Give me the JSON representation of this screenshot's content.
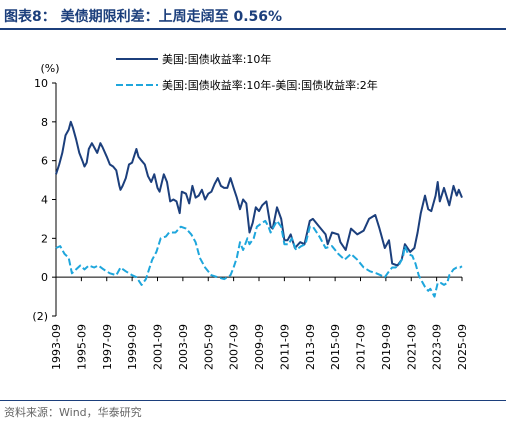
{
  "title": "图表8： 美债期限利差：上周走阔至 0.56%",
  "source": "资料来源：Wind，华泰研究",
  "chart_data": {
    "type": "line",
    "y_unit": "(%)",
    "ylim": [
      -2,
      10
    ],
    "y_ticks": [
      -2,
      0,
      2,
      4,
      6,
      8,
      10
    ],
    "y_tick_labels": [
      "(2)",
      "0",
      "2",
      "4",
      "6",
      "8",
      "10"
    ],
    "xlim": [
      "1993-09",
      "2025-09"
    ],
    "x_tick_labels": [
      "1993-09",
      "1995-09",
      "1997-09",
      "1999-09",
      "2001-09",
      "2003-09",
      "2005-09",
      "2007-09",
      "2009-09",
      "2011-09",
      "2013-09",
      "2015-09",
      "2017-09",
      "2019-09",
      "2021-09",
      "2023-09",
      "2025-09"
    ],
    "legend_position": "top",
    "series": [
      {
        "name": "美国:国债收益率:10年",
        "style": "solid",
        "color": "#1c3f7c",
        "points": [
          [
            "1993-09",
            5.3
          ],
          [
            "1993-12",
            5.8
          ],
          [
            "1994-03",
            6.4
          ],
          [
            "1994-06",
            7.3
          ],
          [
            "1994-09",
            7.6
          ],
          [
            "1994-11",
            8.0
          ],
          [
            "1995-01",
            7.7
          ],
          [
            "1995-04",
            7.1
          ],
          [
            "1995-07",
            6.4
          ],
          [
            "1995-10",
            6.0
          ],
          [
            "1995-12",
            5.7
          ],
          [
            "1996-02",
            5.9
          ],
          [
            "1996-04",
            6.6
          ],
          [
            "1996-07",
            6.9
          ],
          [
            "1996-10",
            6.6
          ],
          [
            "1996-12",
            6.4
          ],
          [
            "1997-03",
            6.9
          ],
          [
            "1997-05",
            6.7
          ],
          [
            "1997-09",
            6.2
          ],
          [
            "1997-12",
            5.8
          ],
          [
            "1998-03",
            5.7
          ],
          [
            "1998-06",
            5.5
          ],
          [
            "1998-09",
            4.7
          ],
          [
            "1998-10",
            4.5
          ],
          [
            "1998-12",
            4.7
          ],
          [
            "1999-03",
            5.1
          ],
          [
            "1999-06",
            5.8
          ],
          [
            "1999-09",
            5.9
          ],
          [
            "2000-01",
            6.6
          ],
          [
            "2000-03",
            6.2
          ],
          [
            "2000-06",
            6.0
          ],
          [
            "2000-09",
            5.8
          ],
          [
            "2000-12",
            5.2
          ],
          [
            "2001-03",
            4.9
          ],
          [
            "2001-06",
            5.3
          ],
          [
            "2001-09",
            4.6
          ],
          [
            "2001-11",
            4.4
          ],
          [
            "2002-03",
            5.3
          ],
          [
            "2002-06",
            4.9
          ],
          [
            "2002-09",
            3.9
          ],
          [
            "2002-12",
            4.0
          ],
          [
            "2003-03",
            3.9
          ],
          [
            "2003-06",
            3.3
          ],
          [
            "2003-08",
            4.4
          ],
          [
            "2003-12",
            4.3
          ],
          [
            "2004-03",
            3.8
          ],
          [
            "2004-06",
            4.7
          ],
          [
            "2004-09",
            4.1
          ],
          [
            "2004-12",
            4.2
          ],
          [
            "2005-03",
            4.5
          ],
          [
            "2005-06",
            4.0
          ],
          [
            "2005-09",
            4.3
          ],
          [
            "2005-12",
            4.4
          ],
          [
            "2006-03",
            4.8
          ],
          [
            "2006-06",
            5.1
          ],
          [
            "2006-09",
            4.7
          ],
          [
            "2006-12",
            4.6
          ],
          [
            "2007-03",
            4.6
          ],
          [
            "2007-06",
            5.1
          ],
          [
            "2007-09",
            4.6
          ],
          [
            "2007-12",
            4.1
          ],
          [
            "2008-03",
            3.5
          ],
          [
            "2008-06",
            4.0
          ],
          [
            "2008-09",
            3.8
          ],
          [
            "2008-12",
            2.3
          ],
          [
            "2009-03",
            2.8
          ],
          [
            "2009-06",
            3.6
          ],
          [
            "2009-09",
            3.4
          ],
          [
            "2009-12",
            3.7
          ],
          [
            "2010-04",
            3.9
          ],
          [
            "2010-08",
            2.6
          ],
          [
            "2010-10",
            2.5
          ],
          [
            "2011-02",
            3.6
          ],
          [
            "2011-06",
            3.0
          ],
          [
            "2011-09",
            1.9
          ],
          [
            "2011-12",
            1.9
          ],
          [
            "2012-03",
            2.2
          ],
          [
            "2012-07",
            1.5
          ],
          [
            "2012-12",
            1.8
          ],
          [
            "2013-04",
            1.7
          ],
          [
            "2013-09",
            2.9
          ],
          [
            "2013-12",
            3.0
          ],
          [
            "2014-06",
            2.6
          ],
          [
            "2014-12",
            2.2
          ],
          [
            "2015-02",
            1.7
          ],
          [
            "2015-06",
            2.3
          ],
          [
            "2015-12",
            2.2
          ],
          [
            "2016-02",
            1.8
          ],
          [
            "2016-07",
            1.4
          ],
          [
            "2016-12",
            2.5
          ],
          [
            "2017-06",
            2.2
          ],
          [
            "2017-12",
            2.4
          ],
          [
            "2018-05",
            3.0
          ],
          [
            "2018-11",
            3.2
          ],
          [
            "2019-03",
            2.5
          ],
          [
            "2019-08",
            1.5
          ],
          [
            "2019-12",
            1.9
          ],
          [
            "2020-03",
            0.7
          ],
          [
            "2020-08",
            0.6
          ],
          [
            "2020-12",
            0.9
          ],
          [
            "2021-03",
            1.7
          ],
          [
            "2021-08",
            1.3
          ],
          [
            "2021-12",
            1.5
          ],
          [
            "2022-03",
            2.3
          ],
          [
            "2022-06",
            3.3
          ],
          [
            "2022-10",
            4.2
          ],
          [
            "2023-01",
            3.5
          ],
          [
            "2023-04",
            3.4
          ],
          [
            "2023-08",
            4.2
          ],
          [
            "2023-10",
            4.9
          ],
          [
            "2023-12",
            3.9
          ],
          [
            "2024-04",
            4.6
          ],
          [
            "2024-09",
            3.7
          ],
          [
            "2025-01",
            4.7
          ],
          [
            "2025-04",
            4.2
          ],
          [
            "2025-06",
            4.5
          ],
          [
            "2025-09",
            4.1
          ]
        ]
      },
      {
        "name": "美国:国债收益率:10年-美国:国债收益率:2年",
        "style": "dashed",
        "color": "#1ea6dc",
        "points": [
          [
            "1993-09",
            1.5
          ],
          [
            "1994-01",
            1.6
          ],
          [
            "1994-05",
            1.2
          ],
          [
            "1994-09",
            1.0
          ],
          [
            "1994-12",
            0.2
          ],
          [
            "1995-04",
            0.4
          ],
          [
            "1995-08",
            0.6
          ],
          [
            "1995-12",
            0.4
          ],
          [
            "1996-04",
            0.6
          ],
          [
            "1996-09",
            0.5
          ],
          [
            "1997-01",
            0.6
          ],
          [
            "1997-06",
            0.4
          ],
          [
            "1997-12",
            0.2
          ],
          [
            "1998-06",
            0.1
          ],
          [
            "1998-10",
            0.5
          ],
          [
            "1999-03",
            0.3
          ],
          [
            "1999-09",
            0.1
          ],
          [
            "2000-01",
            0.0
          ],
          [
            "2000-06",
            -0.4
          ],
          [
            "2000-10",
            -0.1
          ],
          [
            "2001-01",
            0.4
          ],
          [
            "2001-04",
            0.9
          ],
          [
            "2001-08",
            1.3
          ],
          [
            "2001-12",
            2.0
          ],
          [
            "2002-05",
            2.1
          ],
          [
            "2002-08",
            2.3
          ],
          [
            "2003-02",
            2.3
          ],
          [
            "2003-07",
            2.6
          ],
          [
            "2003-12",
            2.5
          ],
          [
            "2004-05",
            2.2
          ],
          [
            "2004-09",
            1.8
          ],
          [
            "2005-01",
            1.0
          ],
          [
            "2005-06",
            0.5
          ],
          [
            "2005-12",
            0.1
          ],
          [
            "2006-06",
            0.0
          ],
          [
            "2006-12",
            -0.1
          ],
          [
            "2007-06",
            0.1
          ],
          [
            "2007-09",
            0.5
          ],
          [
            "2007-12",
            1.0
          ],
          [
            "2008-03",
            1.8
          ],
          [
            "2008-06",
            1.4
          ],
          [
            "2008-10",
            2.0
          ],
          [
            "2008-12",
            1.7
          ],
          [
            "2009-04",
            2.0
          ],
          [
            "2009-07",
            2.6
          ],
          [
            "2009-12",
            2.8
          ],
          [
            "2010-03",
            2.9
          ],
          [
            "2010-06",
            2.6
          ],
          [
            "2010-08",
            2.3
          ],
          [
            "2010-11",
            2.6
          ],
          [
            "2011-02",
            2.9
          ],
          [
            "2011-06",
            2.6
          ],
          [
            "2011-09",
            1.7
          ],
          [
            "2012-01",
            1.7
          ],
          [
            "2012-04",
            2.0
          ],
          [
            "2012-08",
            1.4
          ],
          [
            "2013-01",
            1.6
          ],
          [
            "2013-05",
            1.7
          ],
          [
            "2013-09",
            2.6
          ],
          [
            "2013-12",
            2.6
          ],
          [
            "2014-06",
            2.1
          ],
          [
            "2014-12",
            1.5
          ],
          [
            "2015-06",
            1.6
          ],
          [
            "2015-12",
            1.2
          ],
          [
            "2016-06",
            0.9
          ],
          [
            "2016-12",
            1.2
          ],
          [
            "2017-06",
            0.9
          ],
          [
            "2017-12",
            0.5
          ],
          [
            "2018-06",
            0.3
          ],
          [
            "2018-12",
            0.2
          ],
          [
            "2019-04",
            0.1
          ],
          [
            "2019-08",
            0.0
          ],
          [
            "2019-12",
            0.3
          ],
          [
            "2020-03",
            0.5
          ],
          [
            "2020-06",
            0.5
          ],
          [
            "2020-09",
            0.6
          ],
          [
            "2021-01",
            1.0
          ],
          [
            "2021-03",
            1.6
          ],
          [
            "2021-06",
            1.2
          ],
          [
            "2021-10",
            1.1
          ],
          [
            "2022-01",
            0.7
          ],
          [
            "2022-04",
            0.1
          ],
          [
            "2022-07",
            -0.2
          ],
          [
            "2022-10",
            -0.5
          ],
          [
            "2023-01",
            -0.7
          ],
          [
            "2023-03",
            -0.6
          ],
          [
            "2023-07",
            -1.0
          ],
          [
            "2023-10",
            -0.3
          ],
          [
            "2024-01",
            -0.3
          ],
          [
            "2024-04",
            -0.4
          ],
          [
            "2024-07",
            -0.3
          ],
          [
            "2024-09",
            0.1
          ],
          [
            "2025-01",
            0.4
          ],
          [
            "2025-04",
            0.5
          ],
          [
            "2025-07",
            0.5
          ],
          [
            "2025-09",
            0.56
          ]
        ]
      }
    ]
  }
}
